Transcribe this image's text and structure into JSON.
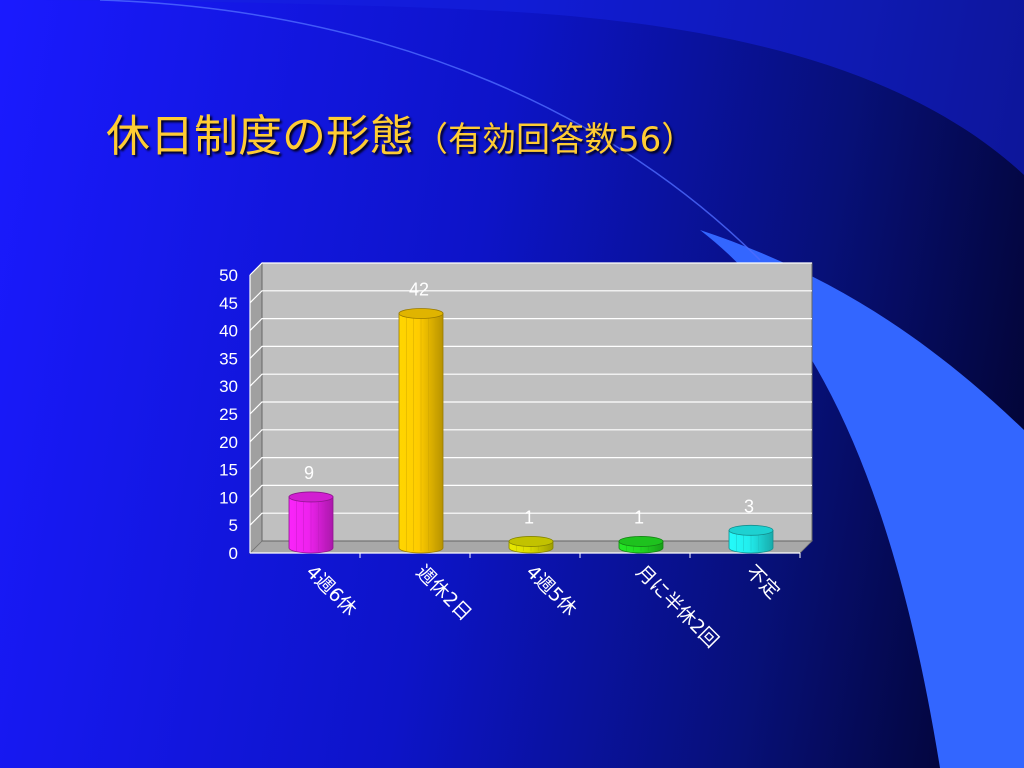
{
  "slide": {
    "title_main": "休日制度の形態",
    "title_sub": "（有効回答数56）"
  },
  "colors": {
    "title": "#ffcc33",
    "background": "#0d14c8",
    "accent": "#3366ff",
    "plot_wall": "#c0c0c0",
    "grid": "#ffffff"
  },
  "chart_data": {
    "type": "bar",
    "title": "",
    "xlabel": "",
    "ylabel": "",
    "categories": [
      "4週6休",
      "週休2日",
      "4週5休",
      "月に半休2回",
      "不定"
    ],
    "values": [
      9,
      42,
      1,
      1,
      3
    ],
    "bar_colors": [
      "#ee22ee",
      "#ffcc00",
      "#dddd00",
      "#22dd22",
      "#22eeee"
    ],
    "ylim": [
      0,
      50
    ],
    "yticks": [
      0,
      5,
      10,
      15,
      20,
      25,
      30,
      35,
      40,
      45,
      50
    ],
    "grid": true,
    "legend": "none",
    "data_labels": true
  }
}
